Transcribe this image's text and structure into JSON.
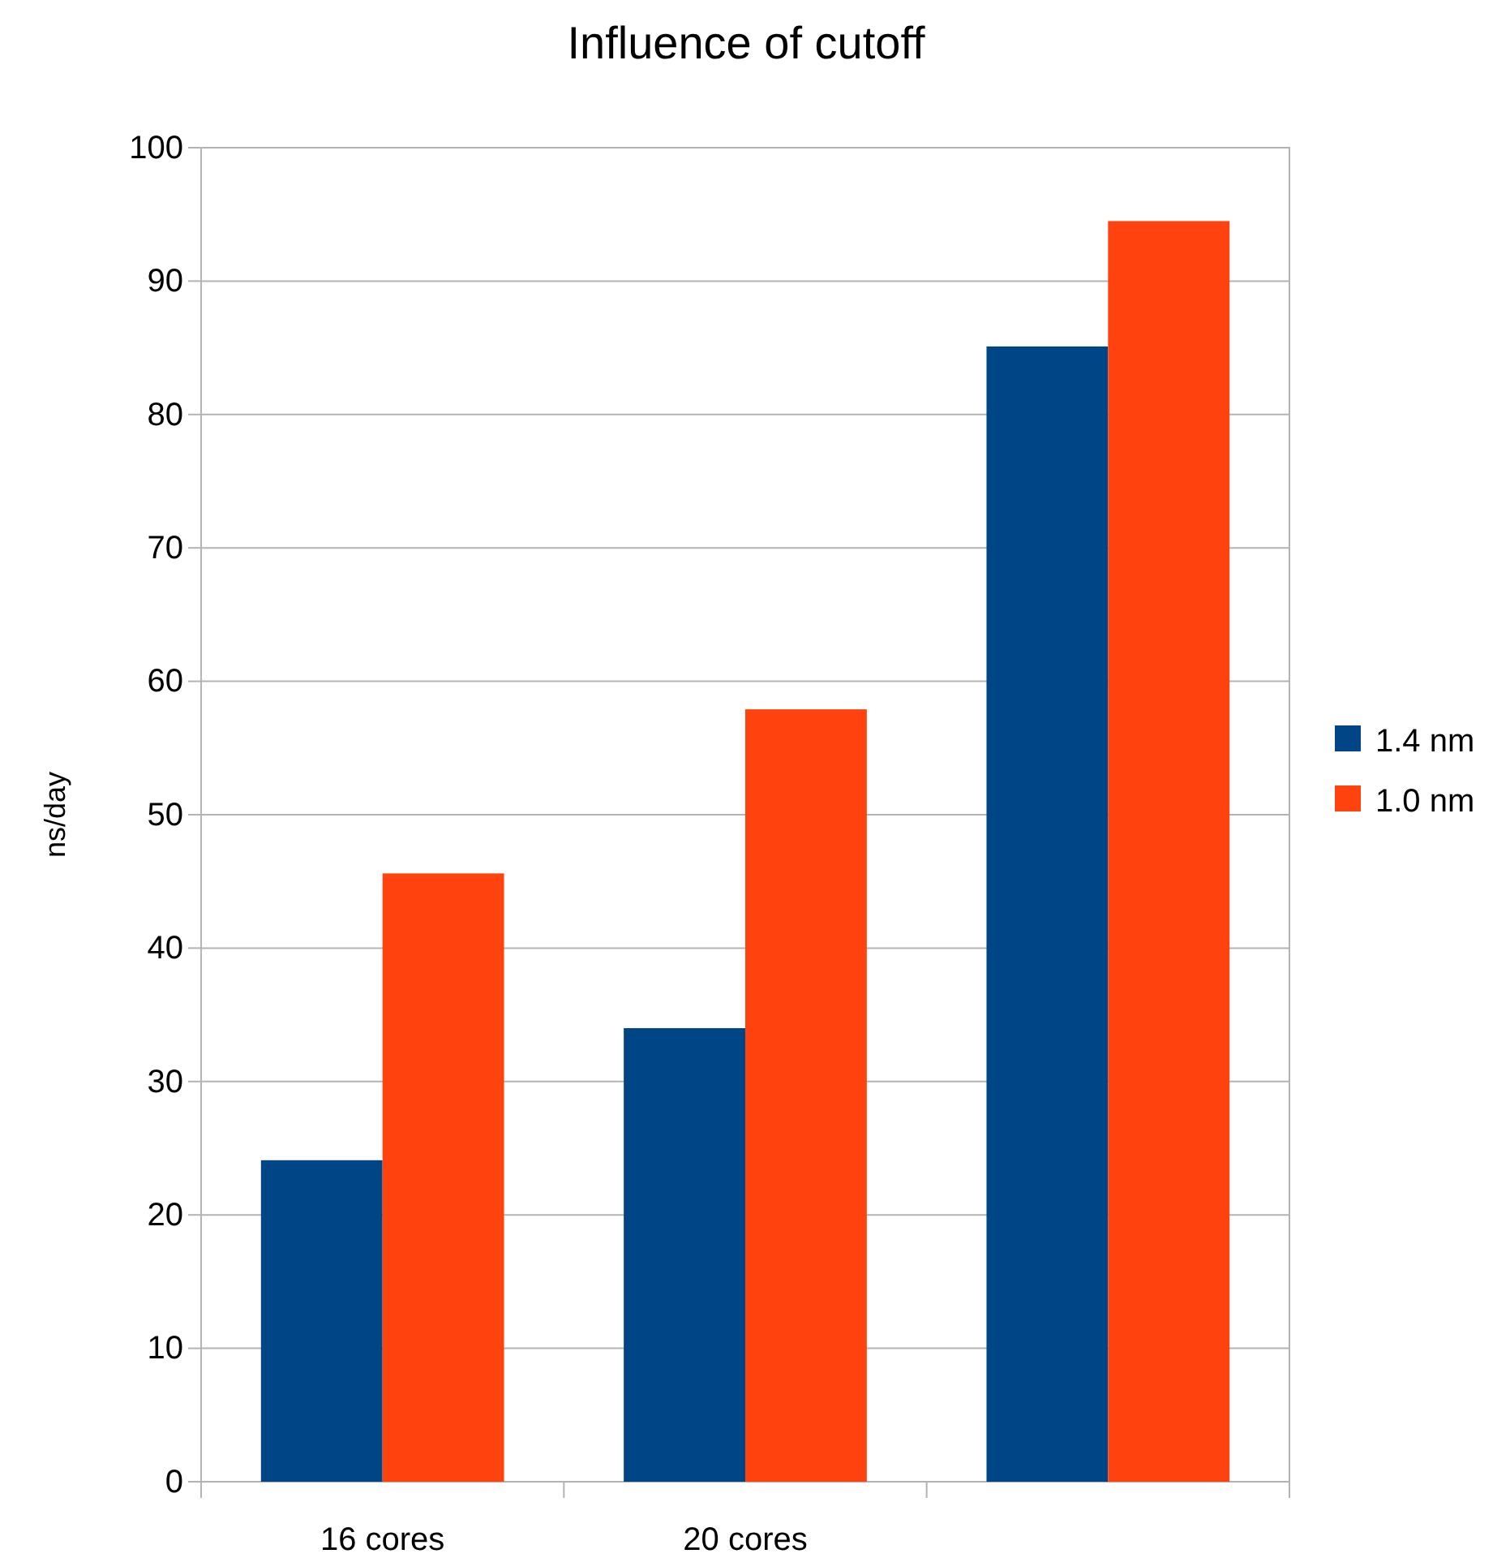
{
  "chart_data": {
    "type": "bar",
    "title": "Influence of cutoff",
    "ylabel": "ns/day",
    "categories": [
      "16 cores",
      "20 cores",
      null
    ],
    "series": [
      {
        "name": "1.4 nm",
        "color": "#004586",
        "values": [
          24.1,
          34,
          85.1
        ]
      },
      {
        "name": "1.0 nm",
        "color": "#ff420e",
        "values": [
          45.6,
          57.9,
          94.5
        ]
      }
    ],
    "ylim": [
      0,
      100
    ],
    "yticks": [
      0,
      10,
      20,
      30,
      40,
      50,
      60,
      70,
      80,
      90,
      100
    ],
    "grid": "y",
    "legend": "right"
  }
}
